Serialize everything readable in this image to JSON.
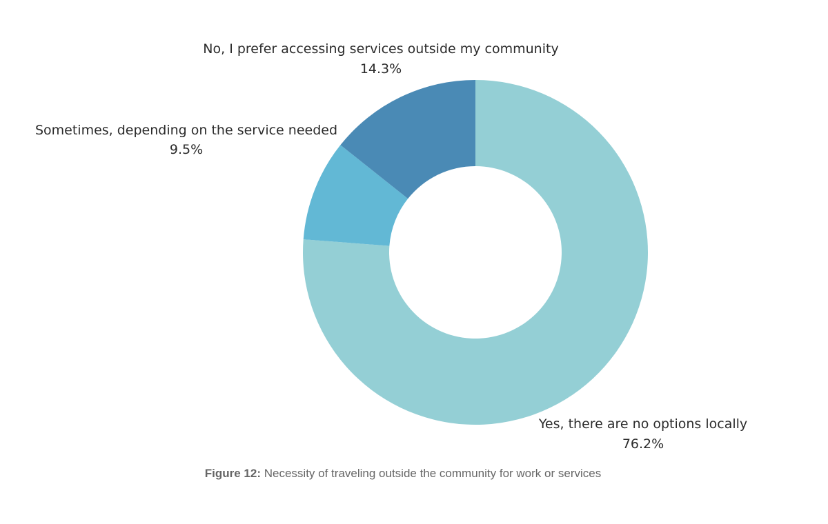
{
  "caption": {
    "prefix": "Figure 12:",
    "text": "Necessity of traveling outside the community for work or services"
  },
  "chart_data": {
    "type": "pie",
    "variant": "donut",
    "title": "",
    "start": "12 o'clock",
    "direction": "clockwise",
    "legend": "none",
    "slices": [
      {
        "label": "Yes, there are no options locally",
        "value": 76.2,
        "value_label": "76.2%",
        "color": "#94cfd5"
      },
      {
        "label": "Sometimes, depending on the service needed",
        "value": 9.5,
        "value_label": "9.5%",
        "color": "#62b8d5"
      },
      {
        "label": "No, I prefer accessing services outside my community",
        "value": 14.3,
        "value_label": "14.3%",
        "color": "#4a8ab5"
      }
    ]
  }
}
